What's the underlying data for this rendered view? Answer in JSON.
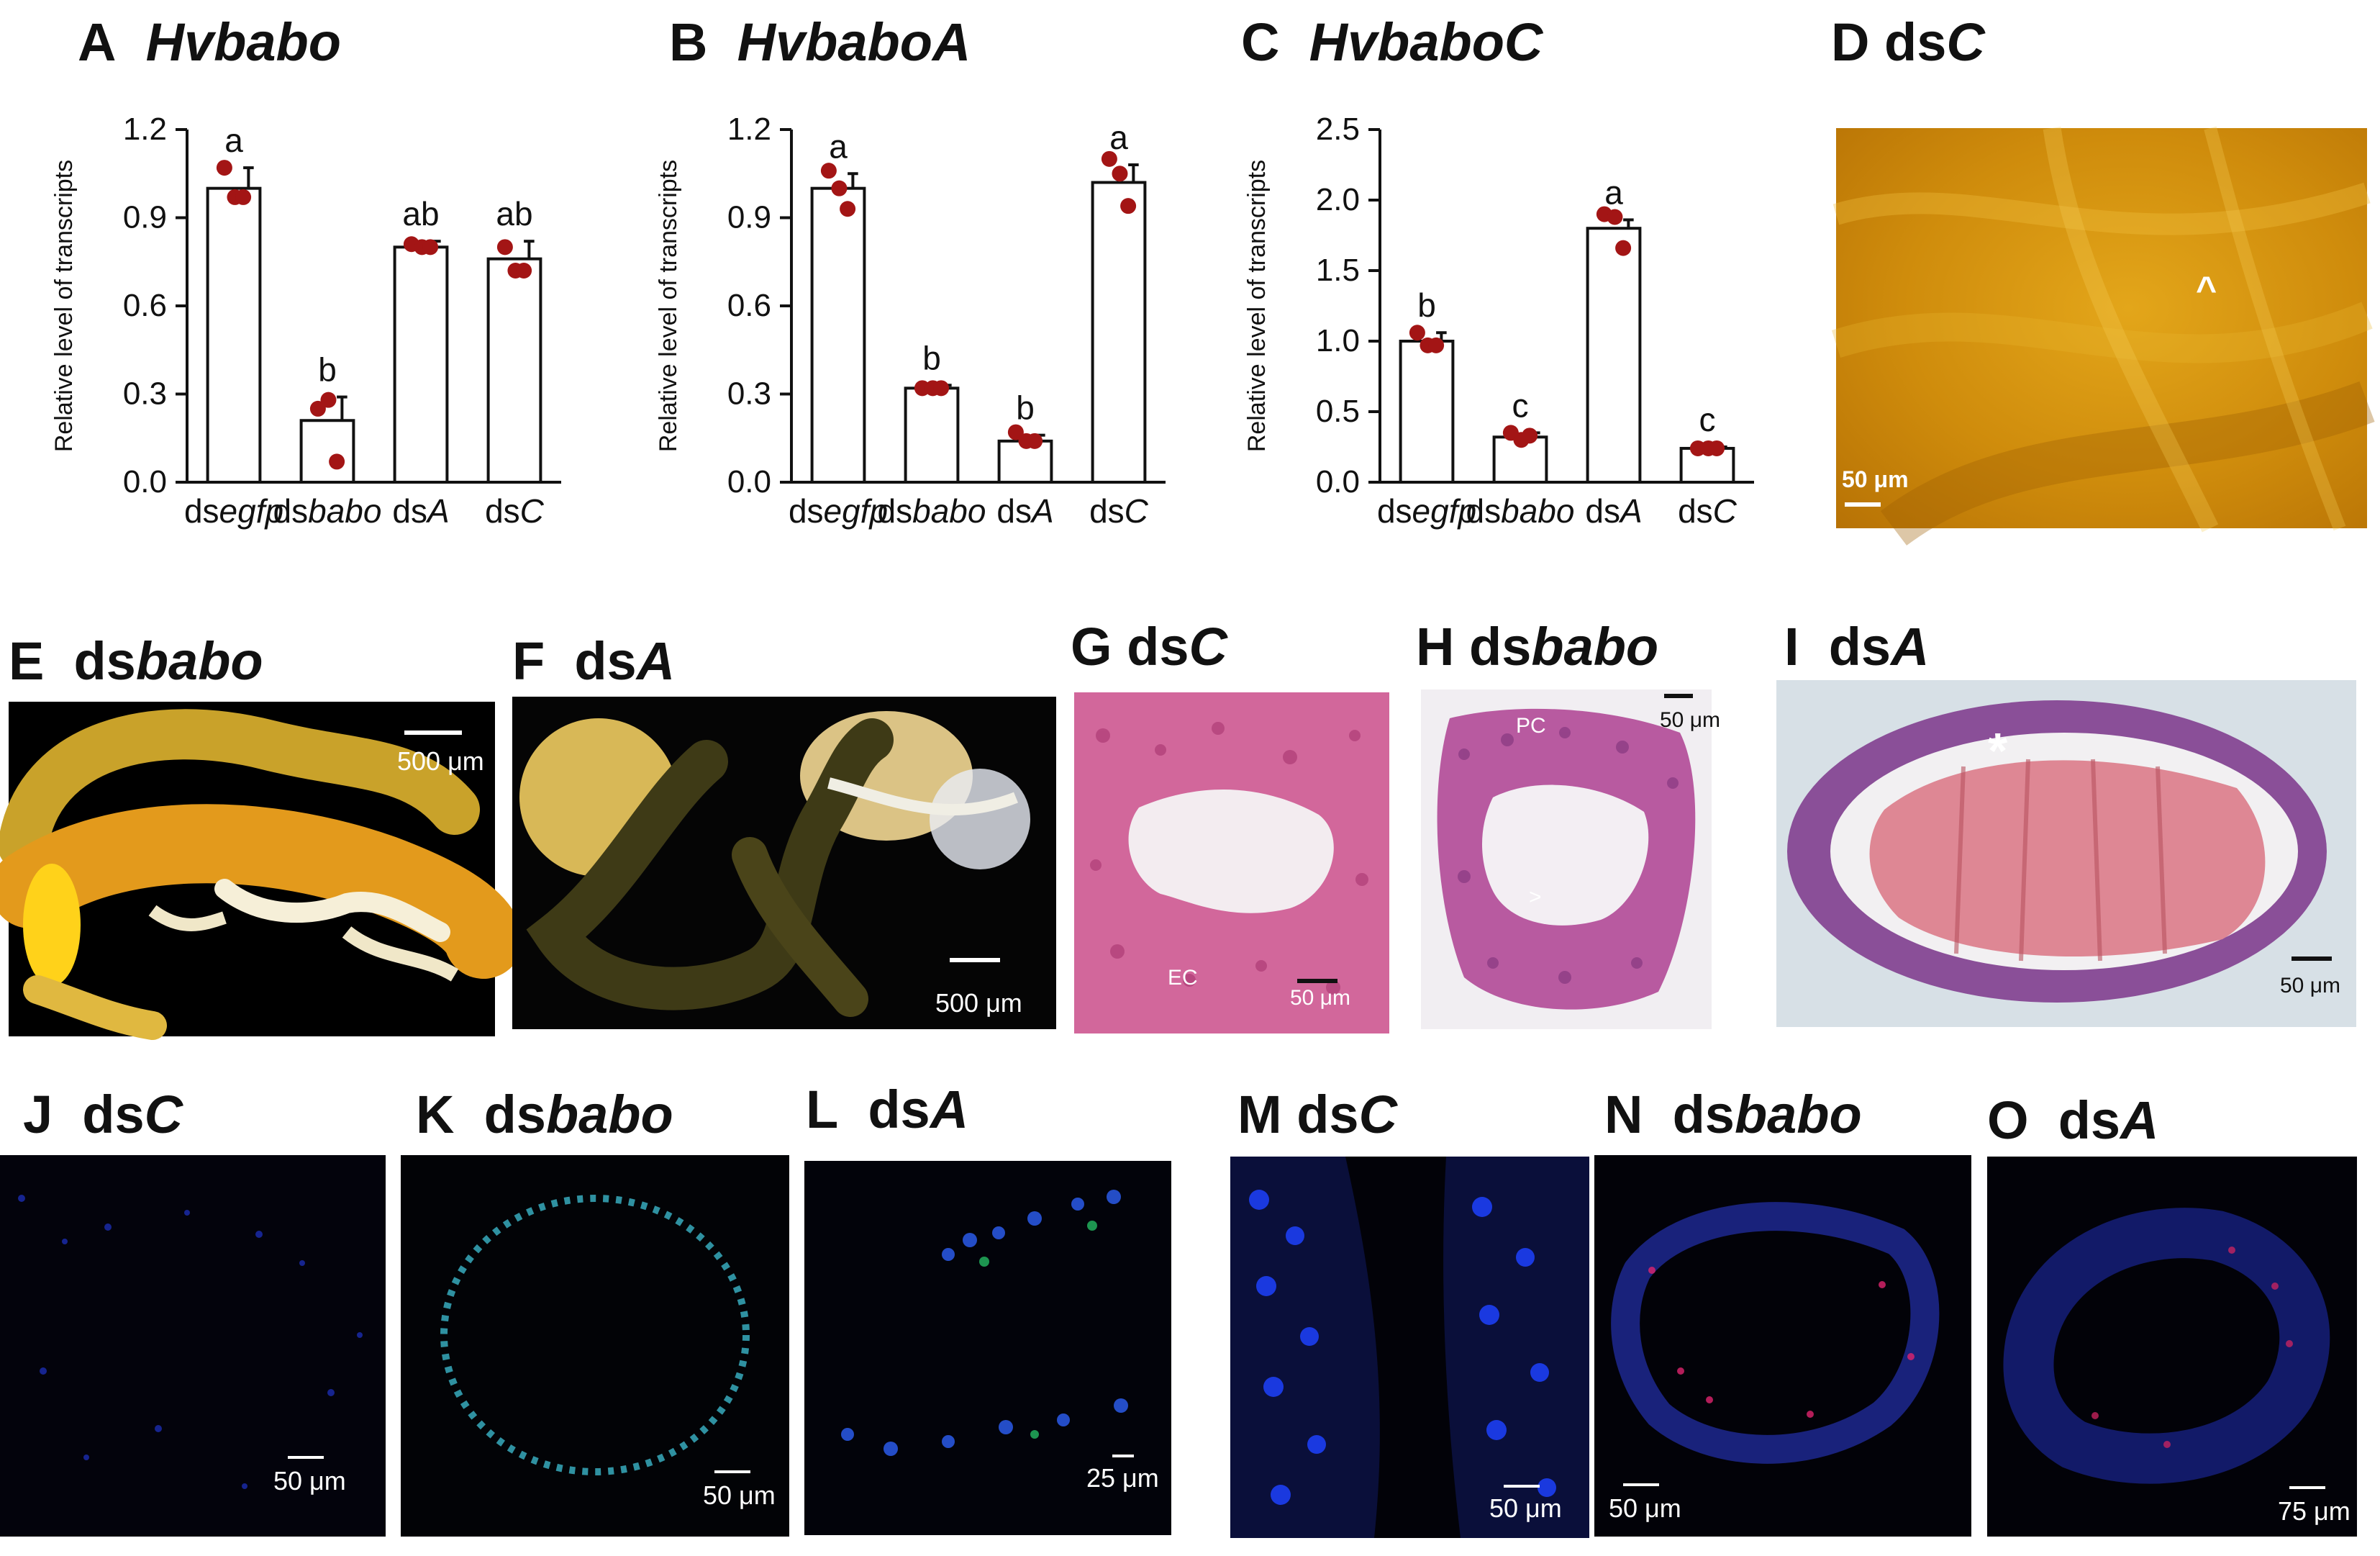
{
  "colors": {
    "bar_fill": "#ffffff",
    "bar_stroke": "#111111",
    "point": "#a31515",
    "accent": "#111111"
  },
  "panels": {
    "A": {
      "letter": "A",
      "gene": "Hvbabo"
    },
    "B": {
      "letter": "B",
      "gene": "HvbaboA"
    },
    "C": {
      "letter": "C",
      "gene": "HvbaboC"
    },
    "D": {
      "letter": "D",
      "prefix": "ds",
      "target": "C",
      "scale": "50 μm",
      "mark": "^"
    },
    "E": {
      "letter": "E",
      "prefix": "ds",
      "target": "babo",
      "scale": "500 μm"
    },
    "F": {
      "letter": "F",
      "prefix": "ds",
      "target": "A",
      "scale": "500 μm"
    },
    "G": {
      "letter": "G",
      "prefix": "ds",
      "target": "C",
      "scale": "50 μm",
      "label": "EC"
    },
    "H": {
      "letter": "H",
      "prefix": "ds",
      "target": "babo",
      "scale": "50 μm",
      "label": "PC",
      "mark": ">"
    },
    "I": {
      "letter": "I",
      "prefix": "ds",
      "target": "A",
      "scale": "50 μm",
      "mark": "*"
    },
    "J": {
      "letter": "J",
      "prefix": "ds",
      "target": "C",
      "scale": "50 μm"
    },
    "K": {
      "letter": "K",
      "prefix": "ds",
      "target": "babo",
      "scale": "50 μm"
    },
    "L": {
      "letter": "L",
      "prefix": "ds",
      "target": "A",
      "scale": "25 μm"
    },
    "M": {
      "letter": "M",
      "prefix": "ds",
      "target": "C",
      "scale": "50 μm"
    },
    "N": {
      "letter": "N",
      "prefix": "ds",
      "target": "babo",
      "scale": "50 μm"
    },
    "O": {
      "letter": "O",
      "prefix": "ds",
      "target": "A",
      "scale": "75 μm"
    }
  },
  "chart_data": [
    {
      "type": "bar",
      "panel": "A",
      "title": "Hvbabo",
      "ylabel": "Relative level of transcripts",
      "categories": [
        {
          "prefix": "ds",
          "italic": "egfp"
        },
        {
          "prefix": "ds",
          "italic": "babo"
        },
        {
          "prefix": "ds",
          "italic": "A"
        },
        {
          "prefix": "ds",
          "italic": "C"
        }
      ],
      "values": [
        1.0,
        0.21,
        0.8,
        0.76
      ],
      "errors": [
        0.07,
        0.08,
        0.02,
        0.06
      ],
      "points": [
        [
          1.07,
          0.97,
          0.97
        ],
        [
          0.25,
          0.28,
          0.07
        ],
        [
          0.81,
          0.8,
          0.8
        ],
        [
          0.8,
          0.72,
          0.72
        ]
      ],
      "letters": [
        "a",
        "b",
        "ab",
        "ab"
      ],
      "ylim": [
        0,
        1.2
      ],
      "yticks": [
        "0.0",
        "0.3",
        "0.6",
        "0.9",
        "1.2"
      ]
    },
    {
      "type": "bar",
      "panel": "B",
      "title": "HvbaboA",
      "ylabel": "Relative level of transcripts",
      "categories": [
        {
          "prefix": "ds",
          "italic": "egfp"
        },
        {
          "prefix": "ds",
          "italic": "babo"
        },
        {
          "prefix": "ds",
          "italic": "A"
        },
        {
          "prefix": "ds",
          "italic": "C"
        }
      ],
      "values": [
        1.0,
        0.32,
        0.14,
        1.02
      ],
      "errors": [
        0.05,
        0.01,
        0.02,
        0.06
      ],
      "points": [
        [
          1.06,
          1.0,
          0.93
        ],
        [
          0.32,
          0.32,
          0.32
        ],
        [
          0.17,
          0.14,
          0.14
        ],
        [
          1.1,
          1.05,
          0.94
        ]
      ],
      "letters": [
        "a",
        "b",
        "b",
        "a"
      ],
      "ylim": [
        0,
        1.2
      ],
      "yticks": [
        "0.0",
        "0.3",
        "0.6",
        "0.9",
        "1.2"
      ]
    },
    {
      "type": "bar",
      "panel": "C",
      "title": "HvbaboC",
      "ylabel": "Relative level of transcripts",
      "categories": [
        {
          "prefix": "ds",
          "italic": "egfp"
        },
        {
          "prefix": "ds",
          "italic": "babo"
        },
        {
          "prefix": "ds",
          "italic": "A"
        },
        {
          "prefix": "ds",
          "italic": "C"
        }
      ],
      "values": [
        1.0,
        0.32,
        1.8,
        0.24
      ],
      "errors": [
        0.06,
        0.03,
        0.06,
        0.01
      ],
      "points": [
        [
          1.06,
          0.97,
          0.97
        ],
        [
          0.35,
          0.3,
          0.33
        ],
        [
          1.9,
          1.88,
          1.66
        ],
        [
          0.24,
          0.24,
          0.24
        ]
      ],
      "letters": [
        "b",
        "c",
        "a",
        "c"
      ],
      "ylim": [
        0,
        2.5
      ],
      "yticks": [
        "0.0",
        "0.5",
        "1.0",
        "1.5",
        "2.0",
        "2.5"
      ]
    }
  ]
}
